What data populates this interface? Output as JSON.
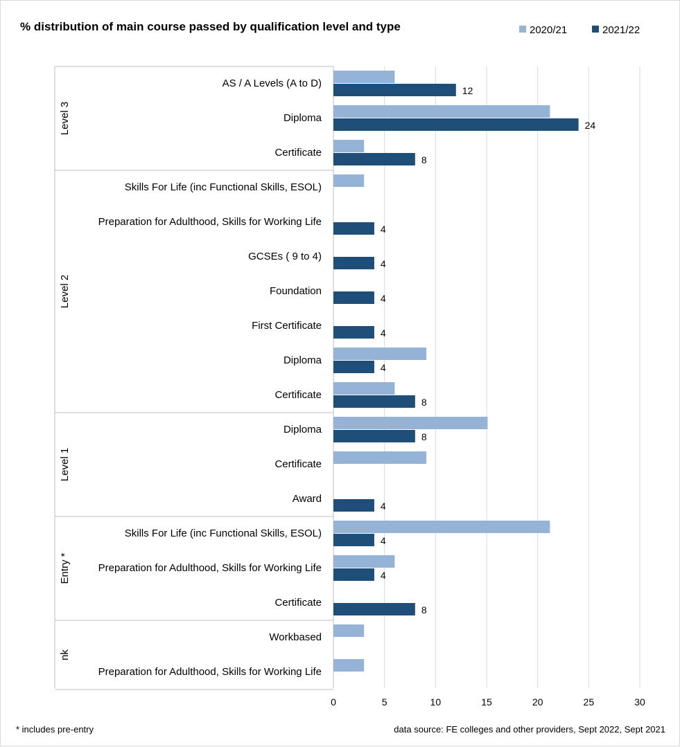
{
  "chart_data": {
    "type": "bar",
    "orientation": "horizontal",
    "title": "% distribution of main course passed by qualification level and type",
    "legend": {
      "placement": "top-right",
      "entries": [
        "2020/21",
        "2021/22"
      ]
    },
    "colors": {
      "2020/21": "#95b3d7",
      "2021/22": "#1f4e79"
    },
    "xlim": [
      0,
      30
    ],
    "x_ticks": [
      "0",
      "5",
      "10",
      "15",
      "20",
      "25",
      "30"
    ],
    "grid": "vertical",
    "groups": [
      {
        "name": "Level 3",
        "categories": [
          "AS / A Levels (A to D)",
          "Diploma",
          "Certificate"
        ]
      },
      {
        "name": "Level 2",
        "categories": [
          "Skills For Life (inc Functional Skills, ESOL)",
          "Preparation for Adulthood, Skills for Working Life",
          "GCSEs ( 9 to 4)",
          "Foundation",
          "First Certificate",
          "Diploma",
          "Certificate"
        ]
      },
      {
        "name": "Level 1",
        "categories": [
          "Diploma",
          "Certificate",
          "Award"
        ]
      },
      {
        "name": "Entry *",
        "categories": [
          "Skills For Life (inc Functional Skills, ESOL)",
          "Preparation for Adulthood, Skills for Working Life",
          "Certificate"
        ]
      },
      {
        "name": "nk",
        "categories": [
          "Workbased",
          "Preparation for Adulthood, Skills for Working Life"
        ]
      }
    ],
    "series": [
      {
        "name": "2020/21",
        "values": [
          6,
          21.2,
          3,
          3,
          0,
          0,
          0,
          0,
          9.1,
          6,
          15.1,
          9.1,
          0,
          21.2,
          6,
          0,
          3,
          3
        ],
        "labels": [
          "",
          "",
          "",
          "",
          "",
          "",
          "",
          "",
          "",
          "",
          "",
          "",
          "",
          "",
          "",
          "",
          "",
          ""
        ]
      },
      {
        "name": "2021/22",
        "values": [
          12,
          24,
          8,
          0,
          4,
          4,
          4,
          4,
          4,
          8,
          8,
          0,
          4,
          4,
          4,
          8,
          0,
          0
        ],
        "labels": [
          "12",
          "24",
          "8",
          "",
          "4",
          "4",
          "4",
          "4",
          "4",
          "8",
          "8",
          "",
          "4",
          "4",
          "4",
          "8",
          "",
          ""
        ]
      }
    ]
  },
  "footer": {
    "left_note": "* includes pre-entry",
    "right_note": "data source: FE colleges and other providers, Sept 2022, Sept 2021"
  }
}
